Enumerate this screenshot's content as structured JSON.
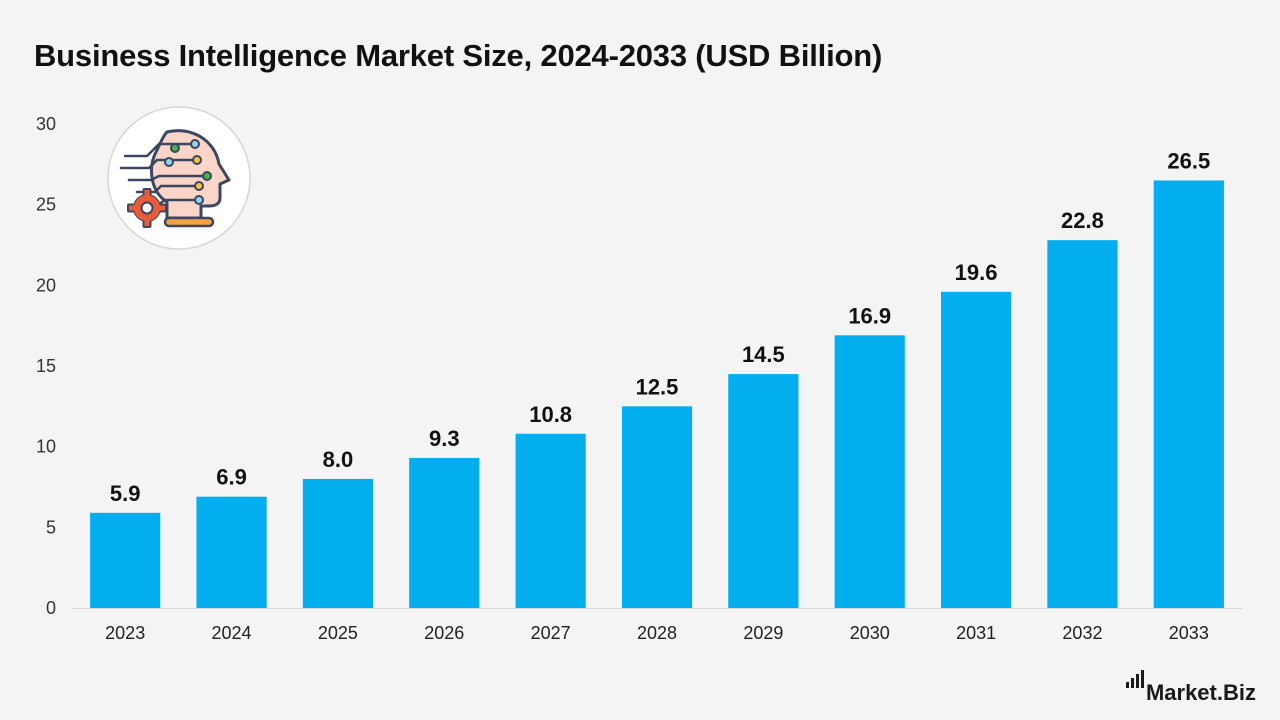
{
  "chart_data": {
    "type": "bar",
    "title": "Business Intelligence Market Size, 2024-2033 (USD Billion)",
    "xlabel": "",
    "ylabel": "",
    "categories": [
      "2023",
      "2024",
      "2025",
      "2026",
      "2027",
      "2028",
      "2029",
      "2030",
      "2031",
      "2032",
      "2033"
    ],
    "values": [
      5.9,
      6.9,
      8.0,
      9.3,
      10.8,
      12.5,
      14.5,
      16.9,
      19.6,
      22.8,
      26.5
    ],
    "value_labels": [
      "5.9",
      "6.9",
      "8.0",
      "9.3",
      "10.8",
      "12.5",
      "14.5",
      "16.9",
      "19.6",
      "22.8",
      "26.5"
    ],
    "ylim": [
      0,
      30
    ],
    "yticks": [
      "0",
      "5",
      "10",
      "15",
      "20",
      "25",
      "30"
    ],
    "grid": false,
    "legend": "none",
    "bar_color": "#03aeef"
  },
  "branding": {
    "logo_icon": "ai-head-gear-icon",
    "name": "Market.Biz"
  }
}
